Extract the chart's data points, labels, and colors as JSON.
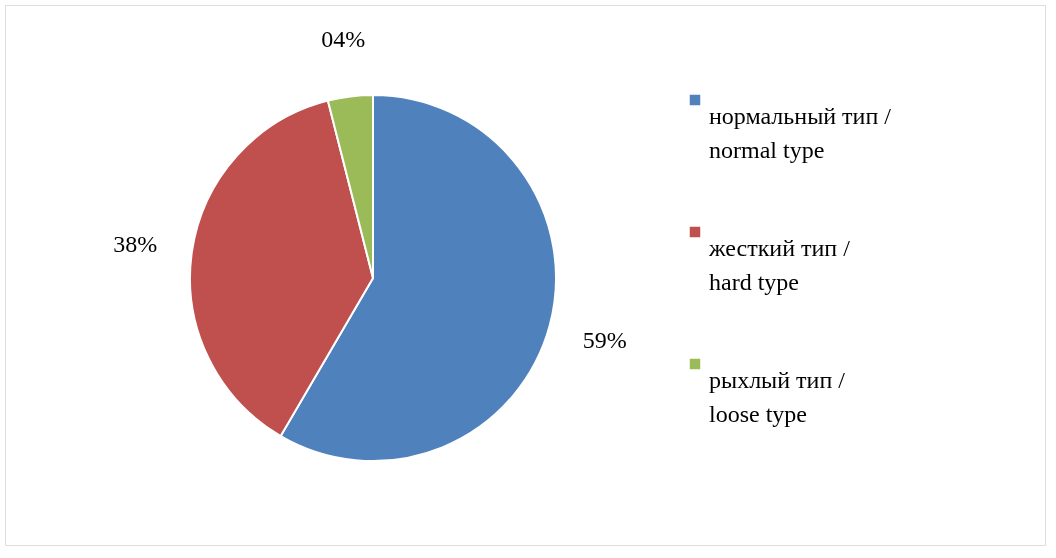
{
  "chart_data": {
    "type": "pie",
    "categories": [
      "нормальный тип / normal type",
      "жесткий тип / hard type",
      "рыхлый тип / loose type"
    ],
    "values": [
      59,
      38,
      4
    ],
    "colors": [
      "#4f81bd",
      "#c0504d",
      "#9bbb59"
    ],
    "value_labels": [
      "59%",
      "38%",
      "04%"
    ],
    "legend": "right"
  }
}
